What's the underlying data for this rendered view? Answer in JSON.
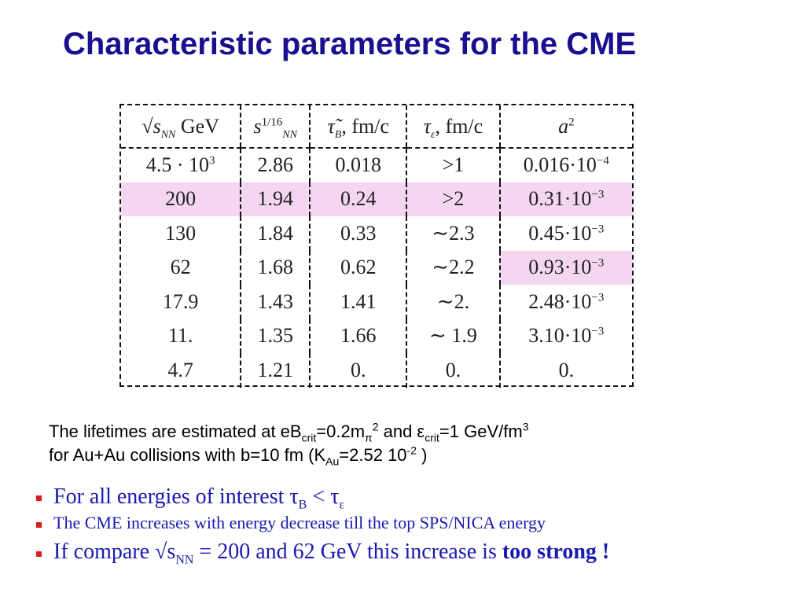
{
  "slide": {
    "title": "Characteristic parameters for the CME"
  },
  "table": {
    "header": {
      "col1_sqrt": "√",
      "col1_s": "s",
      "col1_sub": "NN",
      "col1_unit": "GeV",
      "col2_s": "s",
      "col2_sup": "1/16",
      "col2_sub": "NN",
      "col3_sym": "τ̃",
      "col3_sub": "B",
      "col3_unit": ", fm/c",
      "col4_sym": "τ",
      "col4_sub": "ε",
      "col4_unit": ", fm/c",
      "col5_sym": "a",
      "col5_sup": "2"
    },
    "rows": [
      {
        "c1": "4.5 · 10",
        "c1_sup": "3",
        "c2": "2.86",
        "c3": "0.018",
        "c4": ">1",
        "c5": "0.016·10",
        "c5_sup": "−4"
      },
      {
        "c1": "200",
        "c1_sup": "",
        "c2": "1.94",
        "c3": "0.24",
        "c4": ">2",
        "c5": "0.31·10",
        "c5_sup": "−3"
      },
      {
        "c1": "130",
        "c1_sup": "",
        "c2": "1.84",
        "c3": "0.33",
        "c4": "∼2.3",
        "c5": "0.45·10",
        "c5_sup": "−3"
      },
      {
        "c1": "62",
        "c1_sup": "",
        "c2": "1.68",
        "c3": "0.62",
        "c4": "∼2.2",
        "c5": "0.93·10",
        "c5_sup": "−3"
      },
      {
        "c1": "17.9",
        "c1_sup": "",
        "c2": "1.43",
        "c3": "1.41",
        "c4": "∼2.",
        "c5": "2.48·10",
        "c5_sup": "−3"
      },
      {
        "c1": "11.",
        "c1_sup": "",
        "c2": "1.35",
        "c3": "1.66",
        "c4": "∼ 1.9",
        "c5": "3.10·10",
        "c5_sup": "−3"
      },
      {
        "c1": "4.7",
        "c1_sup": "",
        "c2": "1.21",
        "c3": "0.",
        "c4": "0.",
        "c5": "0.",
        "c5_sup": ""
      }
    ]
  },
  "note": {
    "l1_a": "The  lifetimes are estimated at eB",
    "l1_sub1": "crit",
    "l1_b": "=0.2m",
    "l1_sub2": "π",
    "l1_sup1": "2",
    "l1_c": " and ε",
    "l1_sub3": "crit",
    "l1_d": "=1 GeV/fm",
    "l1_sup2": "3",
    "l2_a": "for Au+Au collisions with b=10 fm  (K",
    "l2_sub": "Au",
    "l2_b": "=2.52 10",
    "l2_sup": "-2",
    "l2_c": " )"
  },
  "bullets": {
    "b1_text": "For all energies of interest  τ",
    "b1_sub1": "B",
    "b1_mid": "  <  τ",
    "b1_sub2": "ε",
    "b2_text": "The CME increases with energy decrease till the top SPS/NICA energy",
    "b3_text": "If compare  √s",
    "b3_sub": "NN",
    "b3_mid": " = 200 and 62 GeV  this increase is ",
    "b3_bold": "too strong !"
  },
  "colors": {
    "title": "#1a0f8f",
    "bullet_text": "#1a1ab0",
    "bullet_marker": "#e01818",
    "highlight": "#f4d6f1"
  }
}
